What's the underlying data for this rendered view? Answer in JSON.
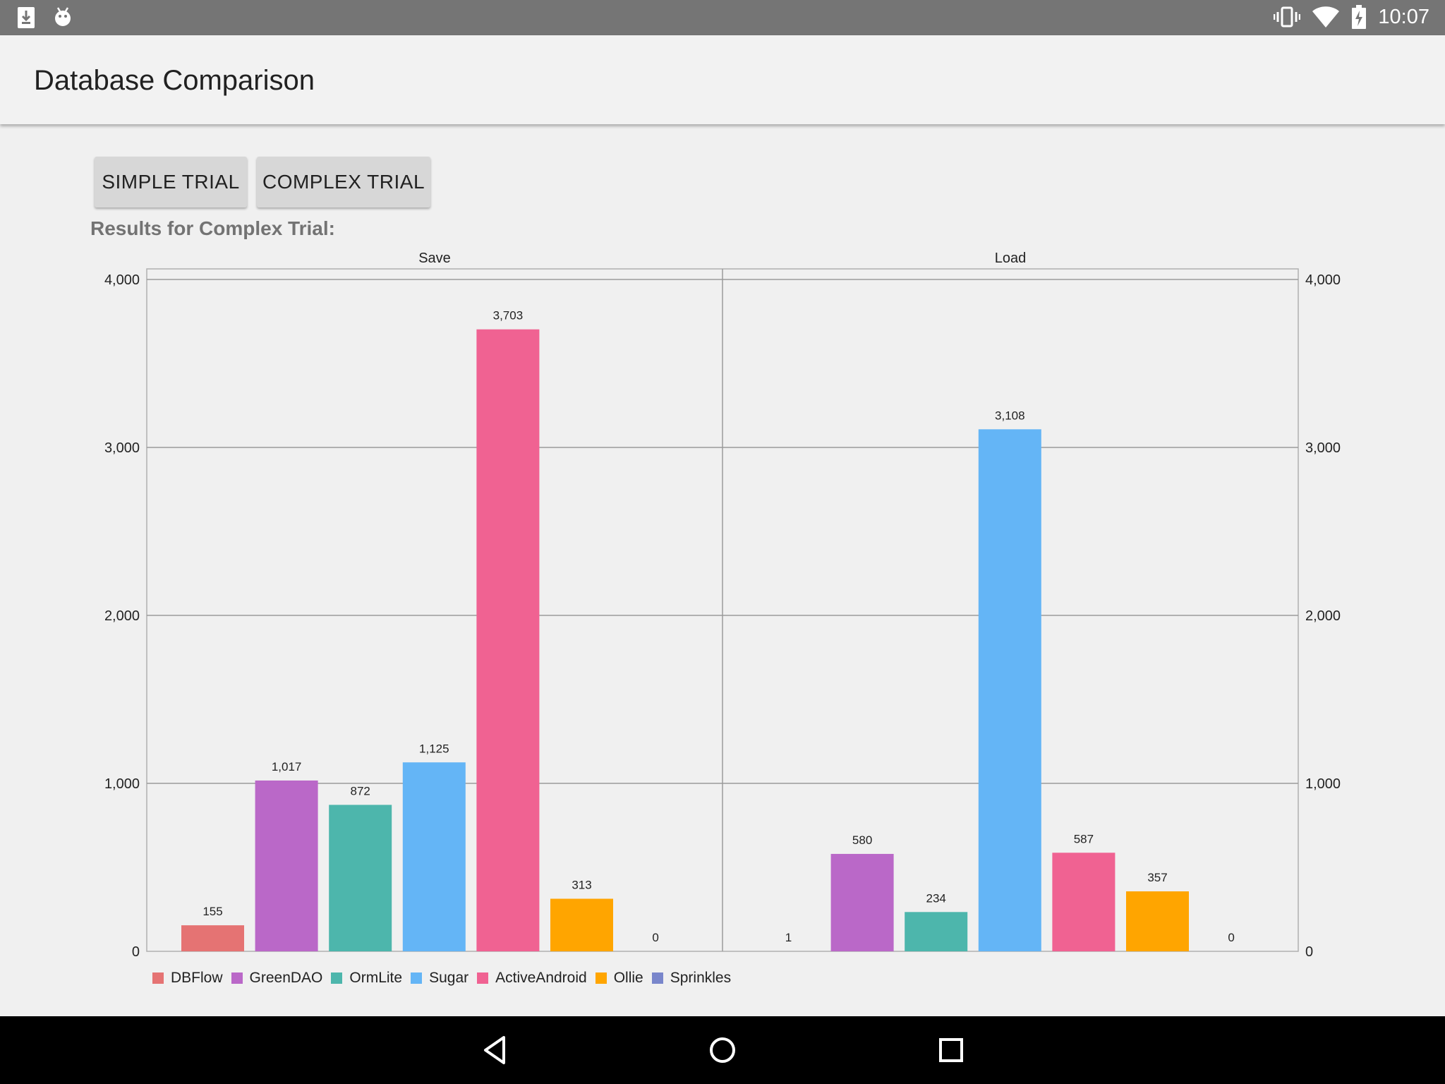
{
  "status": {
    "time": "10:07",
    "left_icons": [
      "download-icon",
      "android-debug-icon"
    ],
    "right_icons": [
      "vibrate-icon",
      "wifi-icon",
      "battery-charging-icon"
    ]
  },
  "app": {
    "title": "Database Comparison"
  },
  "buttons": {
    "simple": "SIMPLE TRIAL",
    "complex": "COMPLEX TRIAL"
  },
  "results_label": "Results for Complex Trial:",
  "colors": {
    "DBFlow": "#e57373",
    "GreenDAO": "#ba68c8",
    "OrmLite": "#4db6ac",
    "Sugar": "#64b5f6",
    "ActiveAndroid": "#f06292",
    "Ollie": "#ffa500",
    "Sprinkles": "#7986cb"
  },
  "chart_data": {
    "type": "bar",
    "categories": [
      "Save",
      "Load"
    ],
    "series": [
      {
        "name": "DBFlow",
        "values": [
          155,
          1
        ],
        "labels": [
          "155",
          "1"
        ]
      },
      {
        "name": "GreenDAO",
        "values": [
          1017,
          580
        ],
        "labels": [
          "1,017",
          "580"
        ]
      },
      {
        "name": "OrmLite",
        "values": [
          872,
          234
        ],
        "labels": [
          "872",
          "234"
        ]
      },
      {
        "name": "Sugar",
        "values": [
          1125,
          3108
        ],
        "labels": [
          "1,125",
          "3,108"
        ]
      },
      {
        "name": "ActiveAndroid",
        "values": [
          3703,
          587
        ],
        "labels": [
          "3,703",
          "587"
        ]
      },
      {
        "name": "Ollie",
        "values": [
          313,
          357
        ],
        "labels": [
          "313",
          "357"
        ]
      },
      {
        "name": "Sprinkles",
        "values": [
          0,
          0
        ],
        "labels": [
          "0",
          "0"
        ]
      }
    ],
    "ylim": [
      0,
      4000
    ],
    "yticks": [
      0,
      1000,
      2000,
      3000,
      4000
    ],
    "ytick_labels": [
      "0",
      "1,000",
      "2,000",
      "3,000",
      "4,000"
    ],
    "grid": true,
    "legend": "bottom-left"
  },
  "nav": {
    "icons": [
      "back-icon",
      "home-icon",
      "recents-icon"
    ]
  }
}
